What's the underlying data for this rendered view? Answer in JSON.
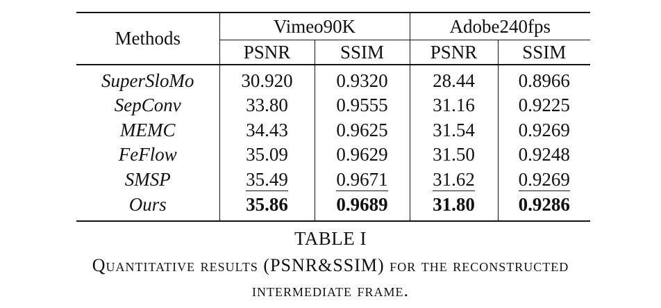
{
  "table": {
    "header": {
      "methods": "Methods",
      "groups": [
        "Vimeo90K",
        "Adobe240fps"
      ],
      "metrics": [
        "PSNR",
        "SSIM",
        "PSNR",
        "SSIM"
      ]
    },
    "rows": [
      {
        "method": "SuperSloMo",
        "values": [
          "30.920",
          "0.9320",
          "28.44",
          "0.8966"
        ],
        "style": [
          "",
          "",
          "",
          ""
        ]
      },
      {
        "method": "SepConv",
        "values": [
          "33.80",
          "0.9555",
          "31.16",
          "0.9225"
        ],
        "style": [
          "",
          "",
          "",
          ""
        ]
      },
      {
        "method": "MEMC",
        "values": [
          "34.43",
          "0.9625",
          "31.54",
          "0.9269"
        ],
        "style": [
          "",
          "",
          "",
          ""
        ]
      },
      {
        "method": "FeFlow",
        "values": [
          "35.09",
          "0.9629",
          "31.50",
          "0.9248"
        ],
        "style": [
          "",
          "",
          "",
          ""
        ]
      },
      {
        "method": "SMSP",
        "values": [
          "35.49",
          "0.9671",
          "31.62",
          "0.9269"
        ],
        "style": [
          "underline",
          "underline",
          "underline",
          "underline"
        ]
      },
      {
        "method": "Ours",
        "values": [
          "35.86",
          "0.9689",
          "31.80",
          "0.9286"
        ],
        "style": [
          "bold",
          "bold",
          "bold",
          "bold"
        ]
      }
    ]
  },
  "caption": {
    "label": "TABLE I",
    "line1": "Quantitative results (PSNR&SSIM) for the reconstructed",
    "line2": "intermediate frame."
  }
}
